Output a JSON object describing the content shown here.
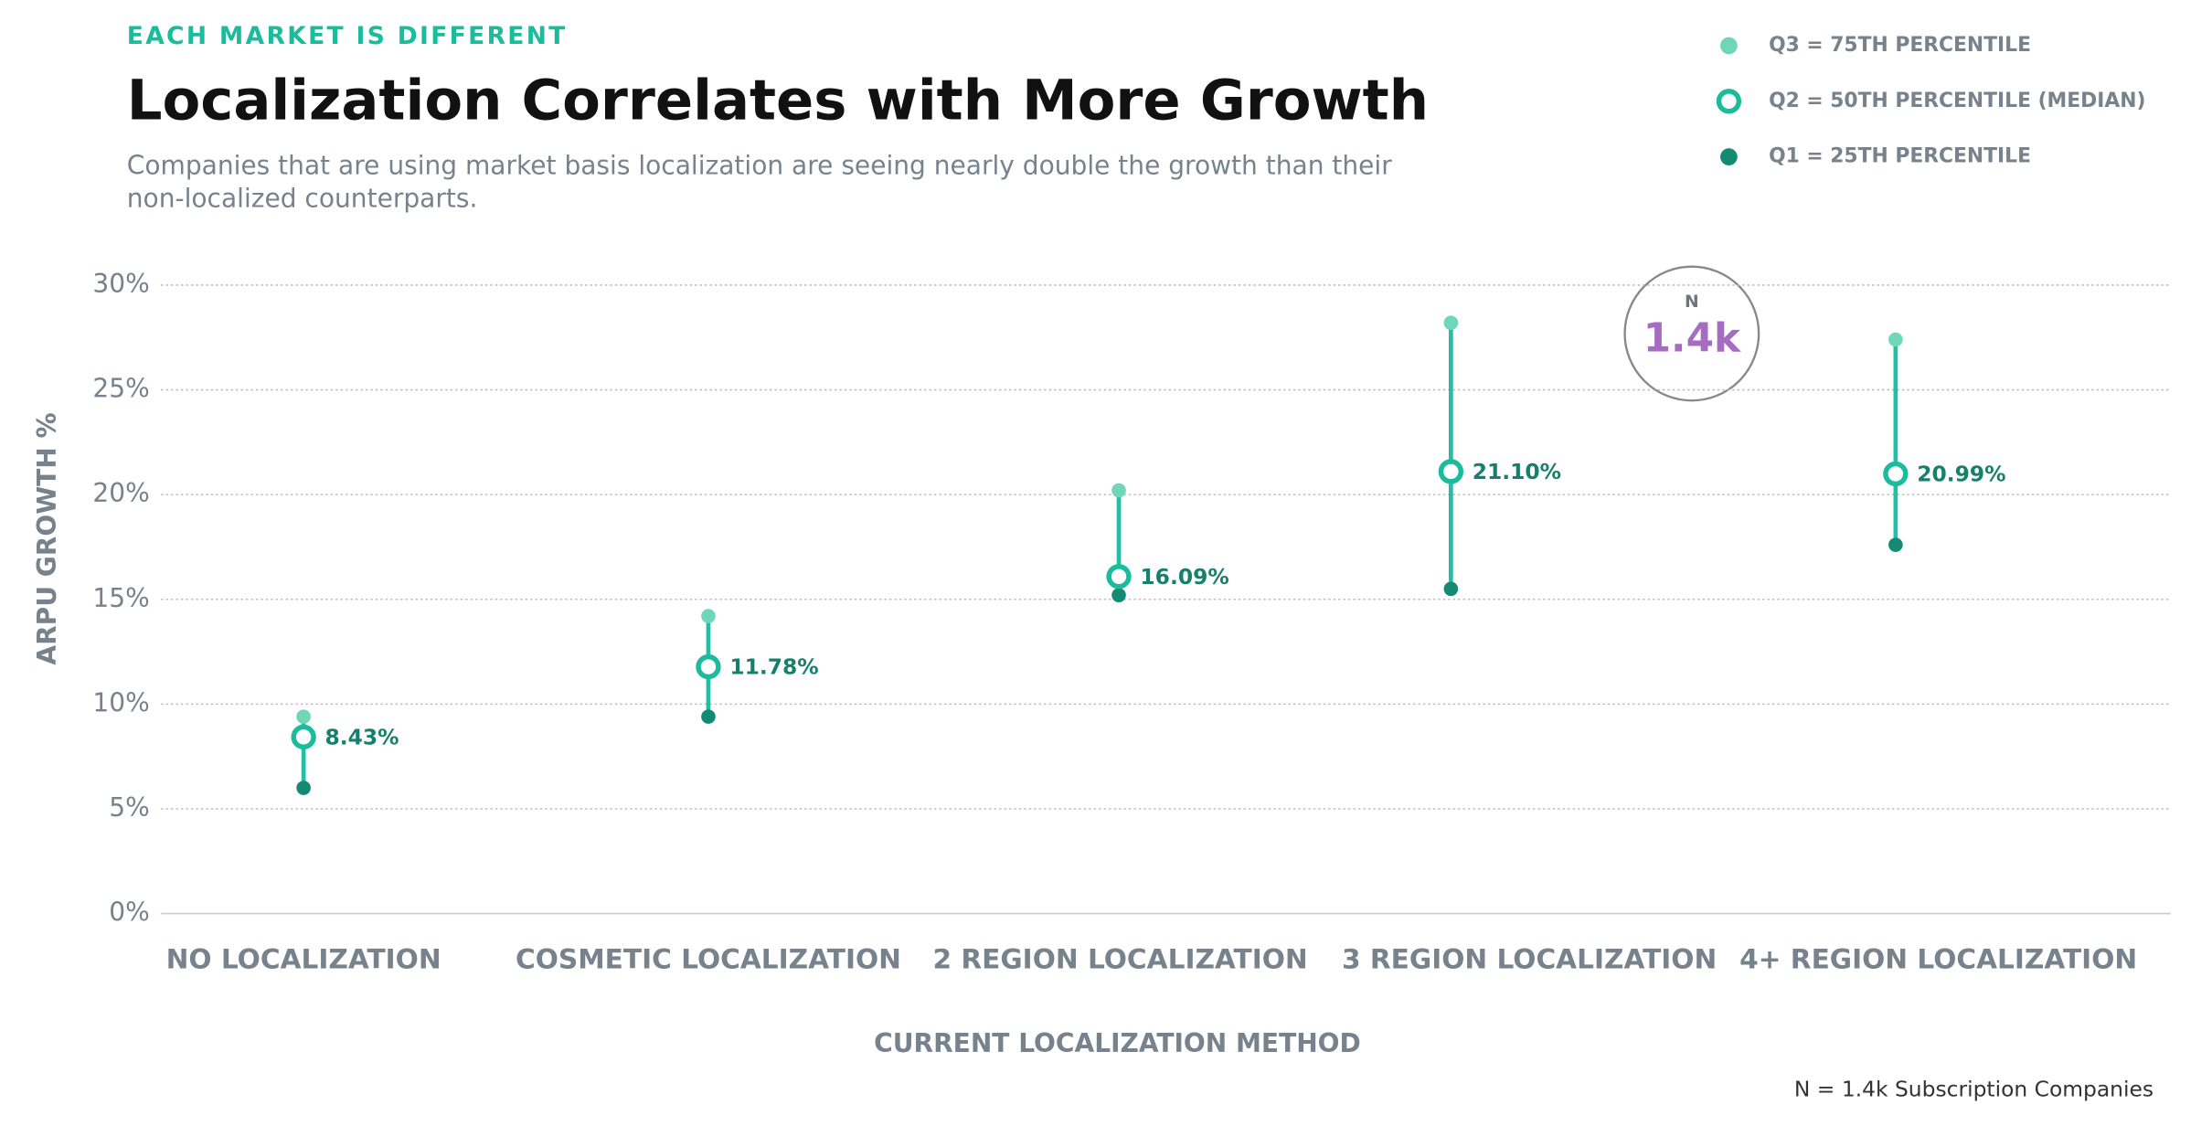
{
  "chart_data": {
    "type": "range-dot",
    "eyebrow": "EACH MARKET IS DIFFERENT",
    "title": "Localization Correlates with More Growth",
    "subtitle_lines": [
      "Companies that are using market basis localization are seeing nearly double the growth than their",
      "non-localized counterparts."
    ],
    "x_label": "CURRENT LOCALIZATION METHOD",
    "y_label": "ARPU GROWTH %",
    "categories": [
      "NO LOCALIZATION",
      "COSMETIC LOCALIZATION",
      "2 REGION LOCALIZATION",
      "3 REGION LOCALIZATION",
      "4+ REGION LOCALIZATION"
    ],
    "series": [
      {
        "name": "Q3 = 75TH PERCENTILE",
        "color": "#6fd6b8",
        "values": [
          9.4,
          14.2,
          20.2,
          28.2,
          27.4
        ]
      },
      {
        "name": "Q2 = 50TH PERCENTILE (MEDIAN)",
        "color": "#1abc9c",
        "values": [
          8.43,
          11.78,
          16.09,
          21.1,
          20.99
        ],
        "value_labels": [
          "8.43%",
          "11.78%",
          "16.09%",
          "21.10%",
          "20.99%"
        ]
      },
      {
        "name": "Q1 = 25TH PERCENTILE",
        "color": "#138a74",
        "values": [
          6.0,
          9.4,
          15.2,
          15.5,
          17.6
        ]
      }
    ],
    "ylim": [
      0,
      30
    ],
    "yticks": [
      {
        "value": 0,
        "label": "0%"
      },
      {
        "value": 5,
        "label": "5%"
      },
      {
        "value": 10,
        "label": "10%"
      },
      {
        "value": 15,
        "label": "15%"
      },
      {
        "value": 20,
        "label": "20%"
      },
      {
        "value": 25,
        "label": "25%"
      },
      {
        "value": 30,
        "label": "30%"
      }
    ],
    "grid": true,
    "badge": {
      "label": "N",
      "value": "1.4k"
    },
    "footnote": "N = 1.4k Subscription Companies"
  }
}
